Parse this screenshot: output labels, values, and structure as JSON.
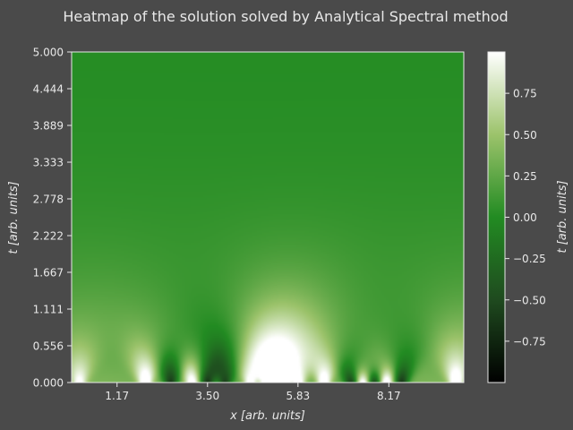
{
  "chart_data": {
    "type": "heatmap",
    "title": "Heatmap of the solution solved by Analytical Spectral method",
    "xlabel": "x [arb. units]",
    "ylabel": "t [arb. units]",
    "colorbar_label": "t [arb. units]",
    "x_ticks": [
      "1.17",
      "3.50",
      "5.83",
      "8.17"
    ],
    "x_tick_values": [
      1.17,
      3.5,
      5.83,
      8.17
    ],
    "xlim": [
      0,
      10.1
    ],
    "y_ticks": [
      "0.000",
      "0.556",
      "1.111",
      "1.667",
      "2.222",
      "2.778",
      "3.333",
      "3.889",
      "4.444",
      "5.000"
    ],
    "y_tick_values": [
      0,
      0.556,
      1.111,
      1.667,
      2.222,
      2.778,
      3.333,
      3.889,
      4.444,
      5.0
    ],
    "ylim": [
      0,
      5
    ],
    "colorbar_ticks": [
      "0.75",
      "0.50",
      "0.25",
      "0.00",
      "−0.25",
      "−0.50",
      "−0.75"
    ],
    "colorbar_tick_values": [
      0.75,
      0.5,
      0.25,
      0,
      -0.25,
      -0.5,
      -0.75
    ],
    "clim": [
      -1,
      1
    ],
    "colormap": "Greens (black → dark green → green → white)",
    "colormap_stops": [
      {
        "v": -1.0,
        "color": "#000000"
      },
      {
        "v": -0.5,
        "color": "#1f4a1f"
      },
      {
        "v": 0.0,
        "color": "#228b22"
      },
      {
        "v": 0.5,
        "color": "#9cc36b"
      },
      {
        "v": 1.0,
        "color": "#ffffff"
      }
    ],
    "bottom_features": [
      {
        "x": 0.2,
        "v": 0.75
      },
      {
        "x": 1.9,
        "v": 1.0
      },
      {
        "x": 2.55,
        "v": -0.95
      },
      {
        "x": 3.1,
        "v": 0.9
      },
      {
        "x": 3.5,
        "v": -0.95
      },
      {
        "x": 3.95,
        "v": -0.85
      },
      {
        "x": 4.6,
        "v": 0.9
      },
      {
        "x": 5.0,
        "v": 0.9
      },
      {
        "x": 5.25,
        "v": 0.9
      },
      {
        "x": 5.5,
        "v": 0.9
      },
      {
        "x": 5.85,
        "v": 0.9
      },
      {
        "x": 6.5,
        "v": 1.0
      },
      {
        "x": 7.2,
        "v": -0.9
      },
      {
        "x": 7.5,
        "v": 0.9
      },
      {
        "x": 7.8,
        "v": -0.9
      },
      {
        "x": 8.1,
        "v": 0.95
      },
      {
        "x": 8.5,
        "v": -1.0
      },
      {
        "x": 9.9,
        "v": 1.0
      }
    ],
    "grid": false
  }
}
